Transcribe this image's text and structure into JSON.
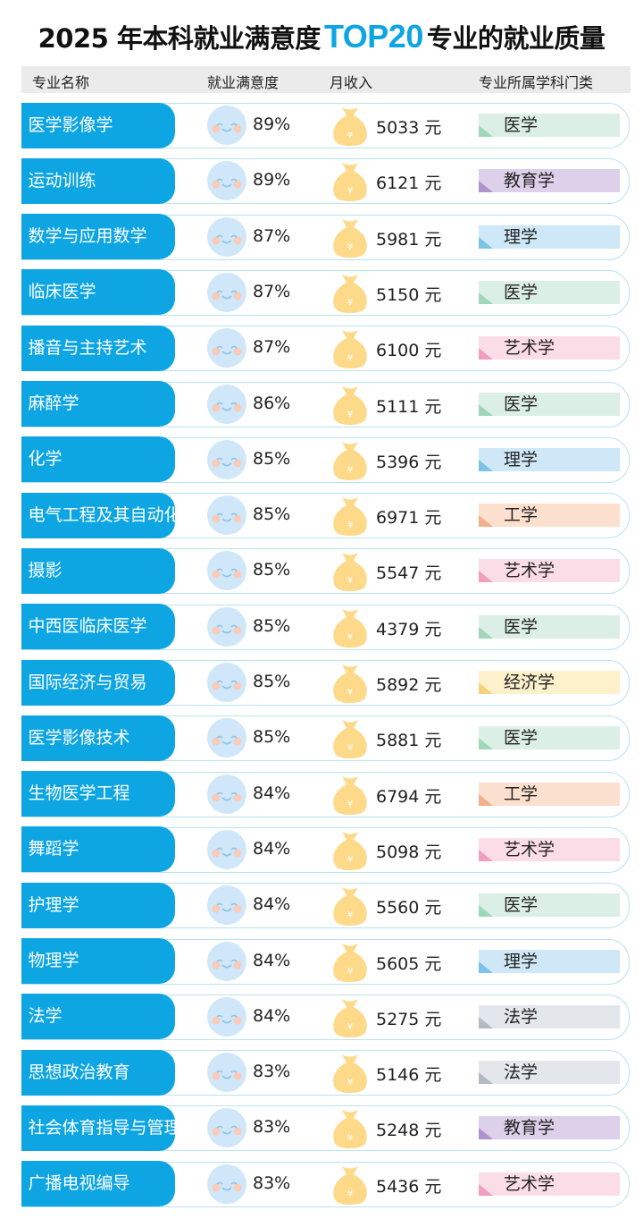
{
  "title": {
    "prefix": "2025 年本科就业满意度",
    "highlight": "TOP20",
    "suffix": "专业的就业质量"
  },
  "colors": {
    "accent": "#0ea5e3"
  },
  "header": {
    "name": "专业名称",
    "satisfaction": "就业满意度",
    "income": "月收入",
    "category": "专业所属学科门类"
  },
  "icons": {
    "satisfaction": "smiley-face-icon",
    "income": "money-bag-icon"
  },
  "category_colors": {
    "医学": [
      "#dcefe6",
      "#9fd8b8"
    ],
    "教育学": [
      "#ddd0ea",
      "#ae93cc"
    ],
    "理学": [
      "#cfe8f7",
      "#7cc3ea"
    ],
    "艺术学": [
      "#fbdde8",
      "#f29ebe"
    ],
    "工学": [
      "#fbe0d0",
      "#f1b089"
    ],
    "经济学": [
      "#fdf1cc",
      "#f4d47a"
    ],
    "法学": [
      "#e3e6ea",
      "#b3bac3"
    ]
  },
  "rows": [
    {
      "name": "医学影像学",
      "satisfaction": "89%",
      "income": "5033 元",
      "category": "医学"
    },
    {
      "name": "运动训练",
      "satisfaction": "89%",
      "income": "6121 元",
      "category": "教育学"
    },
    {
      "name": "数学与应用数学",
      "satisfaction": "87%",
      "income": "5981 元",
      "category": "理学"
    },
    {
      "name": "临床医学",
      "satisfaction": "87%",
      "income": "5150 元",
      "category": "医学"
    },
    {
      "name": "播音与主持艺术",
      "satisfaction": "87%",
      "income": "6100 元",
      "category": "艺术学"
    },
    {
      "name": "麻醉学",
      "satisfaction": "86%",
      "income": "5111 元",
      "category": "医学"
    },
    {
      "name": "化学",
      "satisfaction": "85%",
      "income": "5396 元",
      "category": "理学"
    },
    {
      "name": "电气工程及其自动化",
      "satisfaction": "85%",
      "income": "6971 元",
      "category": "工学"
    },
    {
      "name": "摄影",
      "satisfaction": "85%",
      "income": "5547 元",
      "category": "艺术学"
    },
    {
      "name": "中西医临床医学",
      "satisfaction": "85%",
      "income": "4379 元",
      "category": "医学"
    },
    {
      "name": "国际经济与贸易",
      "satisfaction": "85%",
      "income": "5892 元",
      "category": "经济学"
    },
    {
      "name": "医学影像技术",
      "satisfaction": "85%",
      "income": "5881 元",
      "category": "医学"
    },
    {
      "name": "生物医学工程",
      "satisfaction": "84%",
      "income": "6794 元",
      "category": "工学"
    },
    {
      "name": "舞蹈学",
      "satisfaction": "84%",
      "income": "5098 元",
      "category": "艺术学"
    },
    {
      "name": "护理学",
      "satisfaction": "84%",
      "income": "5560 元",
      "category": "医学"
    },
    {
      "name": "物理学",
      "satisfaction": "84%",
      "income": "5605 元",
      "category": "理学"
    },
    {
      "name": "法学",
      "satisfaction": "84%",
      "income": "5275 元",
      "category": "法学"
    },
    {
      "name": "思想政治教育",
      "satisfaction": "83%",
      "income": "5146 元",
      "category": "法学"
    },
    {
      "name": "社会体育指导与管理",
      "satisfaction": "83%",
      "income": "5248 元",
      "category": "教育学"
    },
    {
      "name": "广播电视编导",
      "satisfaction": "83%",
      "income": "5436 元",
      "category": "艺术学"
    }
  ]
}
